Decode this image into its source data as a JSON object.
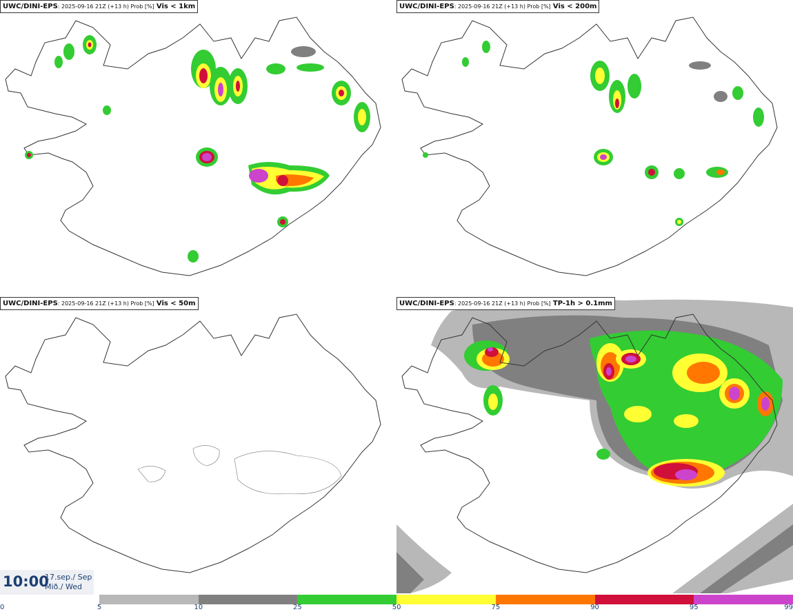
{
  "panels": [
    {
      "model": "UWC/DINI-EPS",
      "meta": ": 2025-09-16 21Z (+13 h) Prob [%]",
      "variable": "Vis < 1km"
    },
    {
      "model": "UWC/DINI-EPS",
      "meta": ": 2025-09-16 21Z (+13 h) Prob [%]",
      "variable": "Vis < 200m"
    },
    {
      "model": "UWC/DINI-EPS",
      "meta": ": 2025-09-16 21Z (+13 h) Prob [%]",
      "variable": "Vis < 50m"
    },
    {
      "model": "UWC/DINI-EPS",
      "meta": ": 2025-09-16 21Z (+13 h) Prob [%]",
      "variable": "TP-1h > 0.1mm"
    }
  ],
  "valid_time": {
    "time": "10:00",
    "date_line1": "17.sep./ Sep",
    "date_line2": "Mið./ Wed"
  },
  "legend": {
    "ticks": [
      "0",
      "5",
      "10",
      "25",
      "50",
      "75",
      "90",
      "95",
      "99"
    ],
    "colors": [
      "#b8b8b8",
      "#808080",
      "#33cc33",
      "#ffff33",
      "#ff7700",
      "#d0103a",
      "#cc44cc"
    ]
  }
}
